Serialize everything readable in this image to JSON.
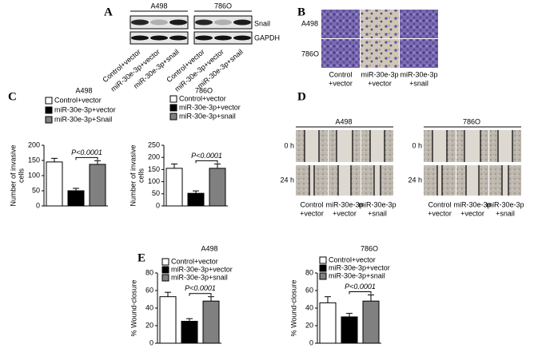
{
  "figure": {
    "panel_labels": [
      "A",
      "B",
      "C",
      "D",
      "E"
    ],
    "blot": {
      "cell_lines": [
        "A498",
        "786O"
      ],
      "rows": [
        "Snail",
        "GAPDH"
      ],
      "lanes": [
        "Control+vector",
        "miR-30e-3p+vector",
        "miR-30e-3p+snail"
      ]
    },
    "transwell": {
      "rows": [
        "A498",
        "786O"
      ],
      "columns": [
        [
          "Control",
          "+vector"
        ],
        [
          "miR-30e-3p",
          "+vector"
        ],
        [
          "miR-30e-3p",
          "+snail"
        ]
      ]
    },
    "wound": {
      "groups": [
        "A498",
        "786O"
      ],
      "rows": [
        "0 h",
        "24 h"
      ],
      "columns": [
        [
          "Control",
          "+vector"
        ],
        [
          "miR-30e-3p",
          "+vector"
        ],
        [
          "miR-30e-3p",
          "+snail"
        ]
      ]
    }
  },
  "chart_data": [
    {
      "type": "bar",
      "title": "A498",
      "ylabel": [
        "Number of invasive",
        "cells"
      ],
      "series": [
        {
          "name": "Control+vector",
          "color": "#ffffff",
          "values": [
            145
          ],
          "errors": [
            12
          ]
        },
        {
          "name": "miR-30e-3p+vector",
          "color": "#000000",
          "values": [
            50
          ],
          "errors": [
            8
          ]
        },
        {
          "name": "miR-30e-3p+Snail",
          "color": "#808080",
          "values": [
            137
          ],
          "errors": [
            12
          ]
        }
      ],
      "annotation": "P<0.0001",
      "ylim": [
        0,
        200
      ],
      "yticks": [
        0,
        50,
        100,
        150,
        200
      ]
    },
    {
      "type": "bar",
      "title": "786O",
      "ylabel": [
        "Number of invasive",
        "cells"
      ],
      "series": [
        {
          "name": "Control+vector",
          "color": "#ffffff",
          "values": [
            155
          ],
          "errors": [
            18
          ]
        },
        {
          "name": "miR-30e-3p+vector",
          "color": "#000000",
          "values": [
            52
          ],
          "errors": [
            10
          ]
        },
        {
          "name": "miR-30e-3p+snail",
          "color": "#808080",
          "values": [
            155
          ],
          "errors": [
            18
          ]
        }
      ],
      "annotation": "P<0.0001",
      "ylim": [
        0,
        250
      ],
      "yticks": [
        0,
        50,
        100,
        150,
        200,
        250
      ]
    },
    {
      "type": "bar",
      "title": "A498",
      "ylabel": [
        "% Wound-closure"
      ],
      "series": [
        {
          "name": "Control+vector",
          "color": "#ffffff",
          "values": [
            53
          ],
          "errors": [
            5
          ]
        },
        {
          "name": "miR-30e-3p+vector",
          "color": "#000000",
          "values": [
            25
          ],
          "errors": [
            3
          ]
        },
        {
          "name": "miR-30e-3p+snail",
          "color": "#808080",
          "values": [
            48
          ],
          "errors": [
            5
          ]
        }
      ],
      "annotation": "P<0.0001",
      "ylim": [
        0,
        80
      ],
      "yticks": [
        0,
        20,
        40,
        60,
        80
      ]
    },
    {
      "type": "bar",
      "title": "786O",
      "ylabel": [
        "% Wound-closure"
      ],
      "series": [
        {
          "name": "Control+vector",
          "color": "#ffffff",
          "values": [
            46
          ],
          "errors": [
            7
          ]
        },
        {
          "name": "miR-30e-3p+vector",
          "color": "#000000",
          "values": [
            30
          ],
          "errors": [
            4
          ]
        },
        {
          "name": "miR-30e-3p+snail",
          "color": "#808080",
          "values": [
            48
          ],
          "errors": [
            7
          ]
        }
      ],
      "annotation": "P<0.0001",
      "ylim": [
        0,
        80
      ],
      "yticks": [
        0,
        20,
        40,
        60,
        80
      ]
    }
  ]
}
